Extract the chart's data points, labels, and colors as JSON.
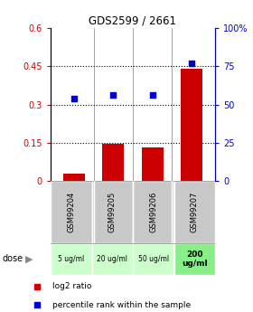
{
  "title": "GDS2599 / 2661",
  "samples": [
    "GSM99204",
    "GSM99205",
    "GSM99206",
    "GSM99207"
  ],
  "doses": [
    "5 ug/ml",
    "20 ug/ml",
    "50 ug/ml",
    "200\nug/ml"
  ],
  "log2_ratio": [
    0.03,
    0.145,
    0.13,
    0.44
  ],
  "percentile_rank": [
    54,
    56,
    56,
    77
  ],
  "left_ylim": [
    0,
    0.6
  ],
  "right_ylim": [
    0,
    100
  ],
  "left_yticks": [
    0,
    0.15,
    0.3,
    0.45,
    0.6
  ],
  "right_yticks": [
    0,
    25,
    50,
    75,
    100
  ],
  "right_yticklabels": [
    "0",
    "25",
    "50",
    "75",
    "100%"
  ],
  "dotted_lines": [
    0.15,
    0.3,
    0.45
  ],
  "bar_color": "#cc0000",
  "dot_color": "#0000cc",
  "sample_box_color": "#c8c8c8",
  "dose_box_colors": [
    "#ccffcc",
    "#ccffcc",
    "#ccffcc",
    "#88ee88"
  ],
  "legend_bar_label": "log2 ratio",
  "legend_dot_label": "percentile rank within the sample"
}
